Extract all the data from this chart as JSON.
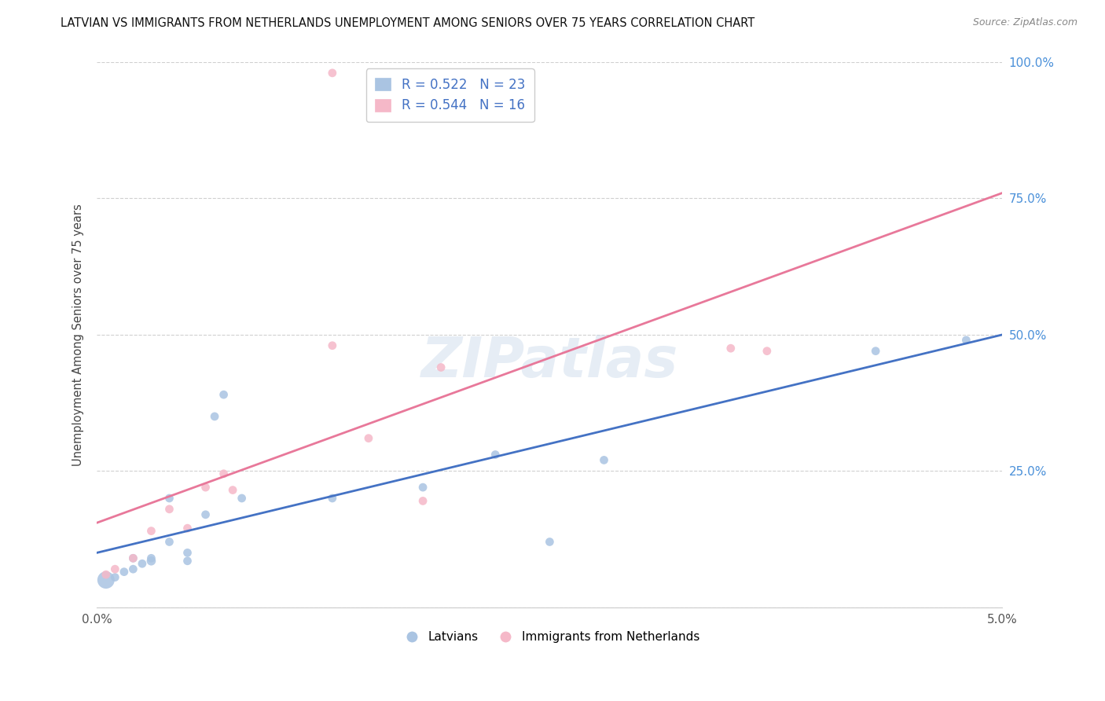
{
  "title": "LATVIAN VS IMMIGRANTS FROM NETHERLANDS UNEMPLOYMENT AMONG SENIORS OVER 75 YEARS CORRELATION CHART",
  "source": "Source: ZipAtlas.com",
  "ylabel": "Unemployment Among Seniors over 75 years",
  "x_min": 0.0,
  "x_max": 0.05,
  "y_min": 0.0,
  "y_max": 1.0,
  "latvian_color": "#aac4e2",
  "netherlands_color": "#f5b8c8",
  "latvian_line_color": "#4472c4",
  "netherlands_line_color": "#e8789a",
  "latvian_R": "0.522",
  "latvian_N": "23",
  "netherlands_R": "0.544",
  "netherlands_N": "16",
  "watermark": "ZIPatlas",
  "blue_line_y0": 0.1,
  "blue_line_y1": 0.5,
  "pink_line_y0": 0.155,
  "pink_line_y1": 0.76,
  "latvian_x": [
    0.0005,
    0.001,
    0.0015,
    0.002,
    0.002,
    0.0025,
    0.003,
    0.003,
    0.004,
    0.004,
    0.005,
    0.005,
    0.006,
    0.0065,
    0.007,
    0.008,
    0.013,
    0.018,
    0.022,
    0.025,
    0.028,
    0.043,
    0.048
  ],
  "latvian_y": [
    0.05,
    0.055,
    0.065,
    0.07,
    0.09,
    0.08,
    0.085,
    0.09,
    0.12,
    0.2,
    0.085,
    0.1,
    0.17,
    0.35,
    0.39,
    0.2,
    0.2,
    0.22,
    0.28,
    0.12,
    0.27,
    0.47,
    0.49
  ],
  "latvian_sizes": [
    250,
    60,
    60,
    60,
    60,
    60,
    70,
    60,
    60,
    60,
    60,
    60,
    60,
    60,
    60,
    60,
    60,
    60,
    60,
    60,
    60,
    60,
    60
  ],
  "netherlands_x": [
    0.0005,
    0.001,
    0.002,
    0.003,
    0.004,
    0.005,
    0.006,
    0.007,
    0.0075,
    0.013,
    0.015,
    0.018,
    0.019,
    0.035,
    0.037,
    0.013
  ],
  "netherlands_y": [
    0.06,
    0.07,
    0.09,
    0.14,
    0.18,
    0.145,
    0.22,
    0.245,
    0.215,
    0.48,
    0.31,
    0.195,
    0.44,
    0.475,
    0.47,
    0.98
  ],
  "netherlands_sizes": [
    60,
    60,
    60,
    60,
    60,
    60,
    60,
    60,
    60,
    60,
    60,
    60,
    60,
    60,
    60,
    60
  ],
  "legend_label_latvian": "Latvians",
  "legend_label_netherlands": "Immigrants from Netherlands"
}
